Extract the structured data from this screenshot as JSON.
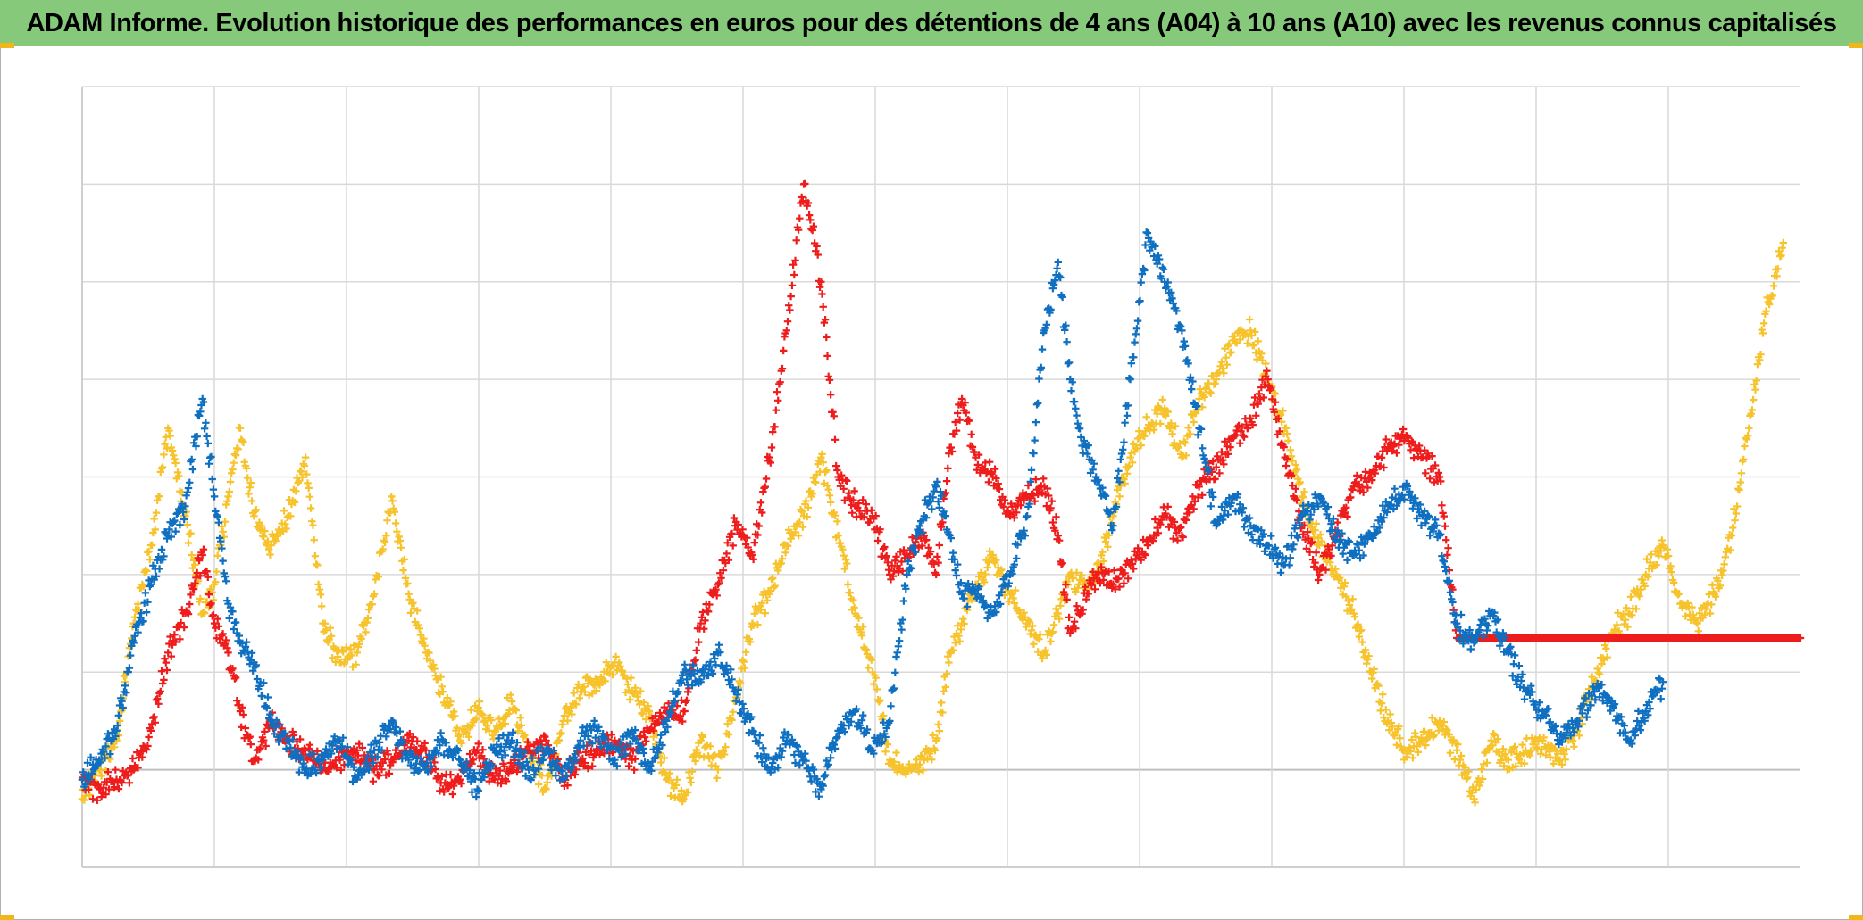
{
  "title": "ADAM Informe. Evolution historique des performances en euros pour des détentions de 4 ans (A04) à 10 ans (A10) avec les revenus connus capitalisés",
  "colors": {
    "title_background": "#86c97a",
    "series_blue": "#0f6fc0",
    "series_red": "#ef1c1c",
    "series_yellow": "#f7c32c",
    "grid": "#d9d9d9",
    "corner_accent": "#f2b61b"
  },
  "chart_data": {
    "type": "scatter",
    "marker": "plus",
    "title": "ADAM Informe. Evolution historique des performances en euros pour des détentions de 4 ans (A04) à 10 ans (A10) avec les revenus connus capitalisés",
    "xlabel": "",
    "ylabel": "",
    "tick_labels_visible": false,
    "legend": "none",
    "grid": true,
    "vertical_gridlines": 13,
    "xlim": [
      0,
      1000
    ],
    "ylim": [
      -1,
      7
    ],
    "series": [
      {
        "color": "#0f6fc0",
        "x": [
          0,
          10,
          20,
          30,
          40,
          50,
          60,
          70,
          77,
          85,
          92,
          100,
          110,
          120,
          130,
          140,
          150,
          160,
          170,
          180,
          190,
          200,
          210,
          220,
          230,
          240,
          250,
          260,
          270,
          280,
          290,
          300,
          310,
          320,
          330,
          340,
          350,
          360,
          370,
          380,
          390,
          400,
          410,
          420,
          430,
          440,
          450,
          460,
          470,
          480,
          490,
          497,
          505,
          512,
          520,
          530,
          540,
          550,
          560,
          568,
          575,
          580,
          590,
          600,
          610,
          620,
          630,
          640,
          650,
          660,
          670,
          680,
          690,
          700,
          710,
          720,
          730,
          740,
          750,
          760,
          770,
          780,
          790,
          800,
          810,
          820,
          830,
          840,
          850,
          860,
          870,
          880,
          890,
          900,
          910,
          920
        ],
        "y": [
          -0.1,
          0.1,
          0.4,
          1.3,
          1.9,
          2.4,
          2.7,
          3.8,
          2.8,
          1.7,
          1.3,
          1.1,
          0.5,
          0.3,
          0.0,
          0.1,
          0.3,
          -0.1,
          0.2,
          0.5,
          0.1,
          0.0,
          0.3,
          0.1,
          -0.2,
          0.2,
          0.3,
          0.0,
          0.2,
          -0.1,
          0.3,
          0.4,
          0.1,
          0.4,
          0.0,
          0.5,
          1.0,
          0.9,
          1.2,
          0.8,
          0.4,
          0.0,
          0.3,
          0.1,
          -0.2,
          0.4,
          0.6,
          0.2,
          0.5,
          2.0,
          2.6,
          2.9,
          2.4,
          1.8,
          1.8,
          1.6,
          2.0,
          2.6,
          4.5,
          5.2,
          4.0,
          3.5,
          3.0,
          2.5,
          4.0,
          5.5,
          5.0,
          4.5,
          3.5,
          2.5,
          2.8,
          2.5,
          2.3,
          2.1,
          2.6,
          2.8,
          2.4,
          2.2,
          2.4,
          2.7,
          2.9,
          2.6,
          2.4,
          1.5,
          1.3,
          1.6,
          1.2,
          0.8,
          0.6,
          0.3,
          0.5,
          0.8,
          0.7,
          0.3,
          0.6,
          0.9
        ]
      },
      {
        "color": "#ef1c1c",
        "x": [
          0,
          10,
          20,
          30,
          40,
          50,
          60,
          70,
          77,
          85,
          92,
          100,
          110,
          120,
          130,
          140,
          150,
          160,
          170,
          180,
          190,
          200,
          210,
          220,
          230,
          240,
          250,
          260,
          270,
          280,
          290,
          300,
          310,
          320,
          330,
          340,
          350,
          360,
          370,
          380,
          390,
          400,
          410,
          420,
          430,
          440,
          450,
          460,
          470,
          480,
          490,
          497,
          505,
          512,
          520,
          530,
          540,
          550,
          560,
          568,
          575,
          580,
          590,
          600,
          610,
          620,
          630,
          640,
          650,
          660,
          670,
          680,
          690,
          700,
          710,
          720,
          730,
          740,
          750,
          760,
          770,
          780,
          790,
          800,
          810,
          820,
          830,
          840,
          850,
          860,
          870,
          880,
          890,
          900,
          910,
          920,
          930,
          940,
          960,
          980,
          1000
        ],
        "y": [
          -0.1,
          -0.2,
          -0.1,
          0.0,
          0.4,
          1.2,
          1.6,
          2.2,
          1.5,
          1.2,
          0.6,
          0.1,
          0.5,
          0.3,
          0.2,
          0.0,
          0.1,
          0.2,
          0.0,
          0.1,
          0.3,
          0.2,
          -0.2,
          -0.1,
          0.2,
          -0.1,
          0.0,
          0.2,
          0.3,
          -0.1,
          0.1,
          0.2,
          0.3,
          0.1,
          0.4,
          0.6,
          0.6,
          1.5,
          1.9,
          2.5,
          2.2,
          3.2,
          4.5,
          6.0,
          5.0,
          3.0,
          2.7,
          2.6,
          2.0,
          2.2,
          2.4,
          2.0,
          3.3,
          3.8,
          3.2,
          3.0,
          2.6,
          2.8,
          2.9,
          2.4,
          1.4,
          1.6,
          2.0,
          1.9,
          2.1,
          2.3,
          2.6,
          2.4,
          2.9,
          3.1,
          3.4,
          3.6,
          4.0,
          3.2,
          2.5,
          2.0,
          2.4,
          2.9,
          3.0,
          3.3,
          3.4,
          3.2,
          3.0,
          1.35,
          1.35,
          1.35,
          1.35,
          1.35,
          1.35,
          1.35,
          1.35,
          1.35,
          1.35,
          1.35,
          1.35,
          1.35,
          1.35,
          1.35,
          1.35,
          1.35,
          1.35
        ]
      },
      {
        "color": "#f7c32c",
        "x": [
          0,
          10,
          20,
          30,
          40,
          50,
          60,
          70,
          77,
          85,
          92,
          100,
          110,
          120,
          130,
          140,
          150,
          160,
          170,
          180,
          190,
          200,
          210,
          220,
          230,
          240,
          250,
          260,
          270,
          280,
          290,
          300,
          310,
          320,
          330,
          340,
          350,
          360,
          370,
          380,
          390,
          400,
          410,
          420,
          430,
          440,
          450,
          460,
          470,
          480,
          490,
          497,
          505,
          512,
          520,
          530,
          540,
          550,
          560,
          568,
          575,
          580,
          590,
          600,
          610,
          620,
          630,
          640,
          650,
          660,
          670,
          680,
          690,
          700,
          710,
          720,
          730,
          740,
          750,
          760,
          770,
          780,
          790,
          800,
          810,
          820,
          830,
          840,
          850,
          860,
          870,
          880,
          890,
          900,
          910,
          920,
          930,
          940,
          950,
          960,
          970,
          980,
          990
        ],
        "y": [
          -0.3,
          0.0,
          0.3,
          1.5,
          2.3,
          3.5,
          2.6,
          1.6,
          1.9,
          2.8,
          3.5,
          2.6,
          2.3,
          2.6,
          3.2,
          1.5,
          1.1,
          1.2,
          1.8,
          2.8,
          1.8,
          1.2,
          0.8,
          0.3,
          0.6,
          0.4,
          0.7,
          0.2,
          -0.2,
          0.5,
          0.8,
          0.9,
          1.1,
          0.8,
          0.6,
          -0.1,
          -0.3,
          0.3,
          0.0,
          0.7,
          1.5,
          1.8,
          2.3,
          2.6,
          3.2,
          2.4,
          1.6,
          1.0,
          0.1,
          0.0,
          0.1,
          0.3,
          1.2,
          1.5,
          1.9,
          2.2,
          1.8,
          1.5,
          1.2,
          1.6,
          2.0,
          1.9,
          2.0,
          2.6,
          3.2,
          3.5,
          3.7,
          3.2,
          3.8,
          4.0,
          4.4,
          4.5,
          4.0,
          3.5,
          2.8,
          2.3,
          2.0,
          1.6,
          1.0,
          0.5,
          0.2,
          0.3,
          0.5,
          0.2,
          -0.3,
          0.3,
          0.1,
          0.2,
          0.3,
          0.1,
          0.4,
          0.9,
          1.4,
          1.6,
          2.0,
          2.3,
          1.7,
          1.5,
          1.8,
          2.4,
          3.5,
          4.7,
          5.4
        ]
      }
    ]
  }
}
